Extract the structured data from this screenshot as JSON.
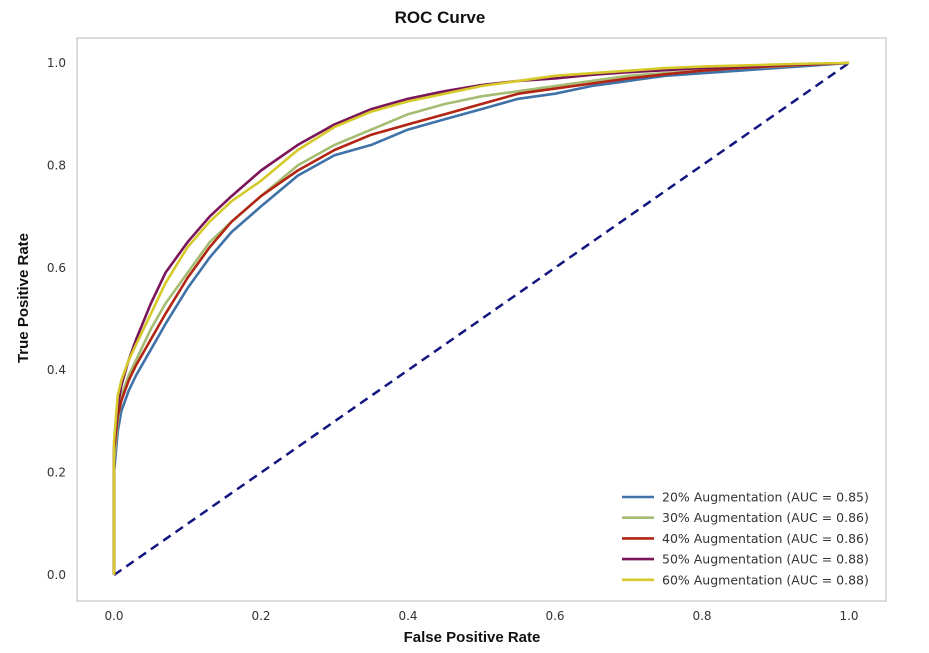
{
  "chart_data": {
    "type": "line",
    "title": "ROC Curve",
    "xlabel": "False Positive Rate",
    "ylabel": "True Positive Rate",
    "xlim": [
      0.0,
      1.0
    ],
    "ylim": [
      0.0,
      1.0
    ],
    "xticks": [
      "0.0",
      "0.2",
      "0.4",
      "0.6",
      "0.8",
      "1.0"
    ],
    "yticks": [
      "0.0",
      "0.2",
      "0.4",
      "0.6",
      "0.8",
      "1.0"
    ],
    "grid": false,
    "legend_position": "lower-right",
    "series": [
      {
        "name": "20% Augmentation (AUC = 0.85)",
        "color": "#3f72a8",
        "x": [
          0.0,
          0.0,
          0.005,
          0.01,
          0.02,
          0.03,
          0.05,
          0.07,
          0.1,
          0.13,
          0.16,
          0.2,
          0.25,
          0.3,
          0.35,
          0.4,
          0.45,
          0.5,
          0.55,
          0.6,
          0.65,
          0.7,
          0.75,
          0.8,
          0.85,
          0.9,
          0.95,
          1.0
        ],
        "y": [
          0.0,
          0.2,
          0.28,
          0.32,
          0.36,
          0.39,
          0.44,
          0.49,
          0.56,
          0.62,
          0.67,
          0.72,
          0.78,
          0.82,
          0.84,
          0.87,
          0.89,
          0.91,
          0.93,
          0.94,
          0.955,
          0.965,
          0.975,
          0.98,
          0.985,
          0.99,
          0.995,
          1.0
        ]
      },
      {
        "name": "30% Augmentation (AUC = 0.86)",
        "color": "#a5bd72",
        "x": [
          0.0,
          0.0,
          0.005,
          0.01,
          0.02,
          0.03,
          0.05,
          0.07,
          0.1,
          0.13,
          0.16,
          0.2,
          0.25,
          0.3,
          0.35,
          0.4,
          0.45,
          0.5,
          0.55,
          0.6,
          0.65,
          0.7,
          0.75,
          0.8,
          0.85,
          0.9,
          0.95,
          1.0
        ],
        "y": [
          0.0,
          0.22,
          0.3,
          0.35,
          0.39,
          0.42,
          0.48,
          0.53,
          0.59,
          0.65,
          0.69,
          0.74,
          0.8,
          0.84,
          0.87,
          0.9,
          0.92,
          0.935,
          0.945,
          0.955,
          0.965,
          0.975,
          0.98,
          0.985,
          0.99,
          0.993,
          0.997,
          1.0
        ]
      },
      {
        "name": "40% Augmentation (AUC = 0.86)",
        "color": "#b22514",
        "x": [
          0.0,
          0.0,
          0.005,
          0.01,
          0.02,
          0.03,
          0.05,
          0.07,
          0.1,
          0.13,
          0.16,
          0.2,
          0.25,
          0.3,
          0.35,
          0.4,
          0.45,
          0.5,
          0.55,
          0.6,
          0.65,
          0.7,
          0.75,
          0.8,
          0.85,
          0.9,
          0.95,
          1.0
        ],
        "y": [
          0.0,
          0.24,
          0.31,
          0.34,
          0.38,
          0.41,
          0.46,
          0.51,
          0.58,
          0.64,
          0.69,
          0.74,
          0.79,
          0.83,
          0.86,
          0.88,
          0.9,
          0.92,
          0.94,
          0.95,
          0.96,
          0.97,
          0.978,
          0.985,
          0.99,
          0.994,
          0.997,
          1.0
        ]
      },
      {
        "name": "50% Augmentation (AUC = 0.88)",
        "color": "#7a1559",
        "x": [
          0.0,
          0.0,
          0.005,
          0.01,
          0.02,
          0.03,
          0.05,
          0.07,
          0.1,
          0.13,
          0.16,
          0.2,
          0.25,
          0.3,
          0.35,
          0.4,
          0.45,
          0.5,
          0.55,
          0.6,
          0.65,
          0.7,
          0.75,
          0.8,
          0.85,
          0.9,
          0.95,
          1.0
        ],
        "y": [
          0.0,
          0.25,
          0.33,
          0.37,
          0.42,
          0.46,
          0.53,
          0.59,
          0.65,
          0.7,
          0.74,
          0.79,
          0.84,
          0.88,
          0.91,
          0.93,
          0.945,
          0.957,
          0.965,
          0.97,
          0.977,
          0.982,
          0.986,
          0.99,
          0.993,
          0.996,
          0.998,
          1.0
        ]
      },
      {
        "name": "60% Augmentation (AUC = 0.88)",
        "color": "#d6c92a",
        "x": [
          0.0,
          0.0,
          0.005,
          0.01,
          0.02,
          0.03,
          0.05,
          0.07,
          0.1,
          0.13,
          0.16,
          0.2,
          0.25,
          0.3,
          0.35,
          0.4,
          0.45,
          0.5,
          0.55,
          0.6,
          0.65,
          0.7,
          0.75,
          0.8,
          0.85,
          0.9,
          0.95,
          1.0
        ],
        "y": [
          0.0,
          0.26,
          0.35,
          0.38,
          0.42,
          0.45,
          0.51,
          0.57,
          0.64,
          0.69,
          0.73,
          0.77,
          0.83,
          0.875,
          0.905,
          0.925,
          0.94,
          0.955,
          0.965,
          0.975,
          0.98,
          0.985,
          0.99,
          0.993,
          0.995,
          0.997,
          0.999,
          1.0
        ]
      }
    ],
    "reference_line": {
      "color": "#141680",
      "style": "dashed",
      "x": [
        0.0,
        1.0
      ],
      "y": [
        0.0,
        1.0
      ]
    }
  }
}
